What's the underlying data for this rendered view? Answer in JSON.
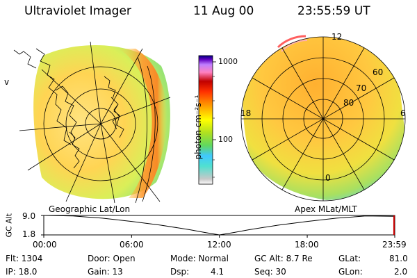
{
  "header": {
    "instrument": "Ultraviolet Imager",
    "date": "11 Aug 00",
    "time": "23:55:59  UT"
  },
  "colorbar": {
    "tick_labels": [
      "1000",
      "100"
    ],
    "tick_values": [
      1000,
      100
    ],
    "unit_label": "photon cm⁻²s⁻¹",
    "colors": [
      "#ffffff",
      "#c8c8c8",
      "#50e0d0",
      "#40c8ff",
      "#60d860",
      "#b0e020",
      "#ffff00",
      "#ffc000",
      "#ff8000",
      "#ff3000",
      "#c00000",
      "#ff80c0",
      "#c080ff",
      "#6000c0",
      "#000080"
    ]
  },
  "left_map": {
    "label": "Geographic Lat/Lon"
  },
  "right_map": {
    "label": "Apex  MLat/MLT",
    "mlt_labels": {
      "top": "12",
      "left": "18",
      "right": "6",
      "bottom": "0"
    },
    "mlat_labels": [
      "60",
      "70",
      "80"
    ]
  },
  "chart_data": {
    "type": "line",
    "title": "",
    "ylabel": "GC Alt",
    "y_ticks": [
      "9.0",
      "1.8"
    ],
    "ylim": [
      1.8,
      9.0
    ],
    "x_tick_labels": [
      "00:00",
      "06:00",
      "12:00",
      "18:00",
      "23:59"
    ],
    "series": [
      {
        "x": [
          0,
          2,
          4,
          6,
          8,
          10,
          11,
          12,
          13,
          14,
          16,
          18,
          20,
          22,
          23.98
        ],
        "values": [
          9.0,
          8.8,
          8.0,
          6.8,
          5.4,
          3.7,
          2.7,
          1.8,
          2.7,
          3.7,
          5.4,
          6.8,
          8.0,
          8.8,
          8.7
        ]
      }
    ],
    "current_marker_x": 23.93,
    "current_marker_color": "#cc0000"
  },
  "info": {
    "flt": "Flt: 1304",
    "ip": "IP: 18.0",
    "door": "Door: Open",
    "gain": "Gain: 13",
    "mode": "Mode: Normal",
    "dsp_label": "Dsp:",
    "dsp_value": "4.1",
    "gcalt": "GC Alt: 8.7 Re",
    "seq": "Seq: 30",
    "glat_label": "GLat:",
    "glat_value": "81.0",
    "glon_label": "GLon:",
    "glon_value": "2.0"
  }
}
